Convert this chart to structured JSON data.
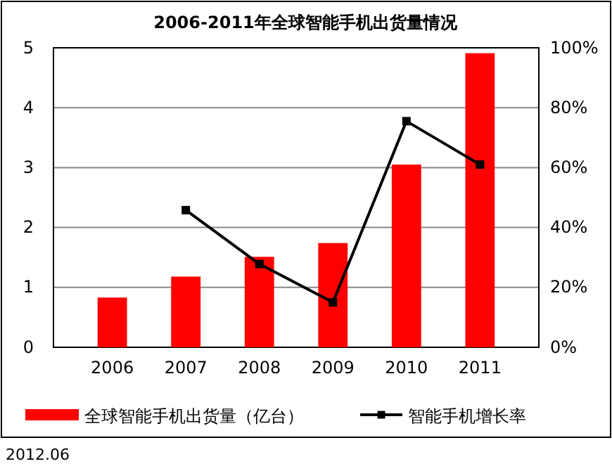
{
  "chart_data": {
    "type": "bar",
    "title": "2006-2011年全球智能手机出货量情况",
    "categories": [
      "2006",
      "2007",
      "2008",
      "2009",
      "2010",
      "2011"
    ],
    "series": [
      {
        "name": "全球智能手机出货量（亿台）",
        "color": "#ff0000",
        "values": [
          0.83,
          1.18,
          1.51,
          1.74,
          3.05,
          4.91
        ]
      },
      {
        "name": "智能手机增长率",
        "type": "line",
        "axis": "y2",
        "color": "#000000",
        "marker": "square",
        "values": [
          null,
          45.8,
          27.8,
          15,
          75.5,
          61
        ]
      }
    ],
    "ylim": [
      0,
      5
    ],
    "yticks": [
      0,
      1,
      2,
      3,
      4,
      5
    ],
    "y2lim": [
      0,
      100
    ],
    "y2ticks": [
      {
        "value": 0,
        "label": "0%"
      },
      {
        "value": 20,
        "label": "20%"
      },
      {
        "value": 40,
        "label": "40%"
      },
      {
        "value": 60,
        "label": "60%"
      },
      {
        "value": 80,
        "label": "80%"
      },
      {
        "value": 100,
        "label": "100%"
      }
    ],
    "grid": "y",
    "legend": "bottom",
    "annotations": [
      "2012.06"
    ]
  }
}
